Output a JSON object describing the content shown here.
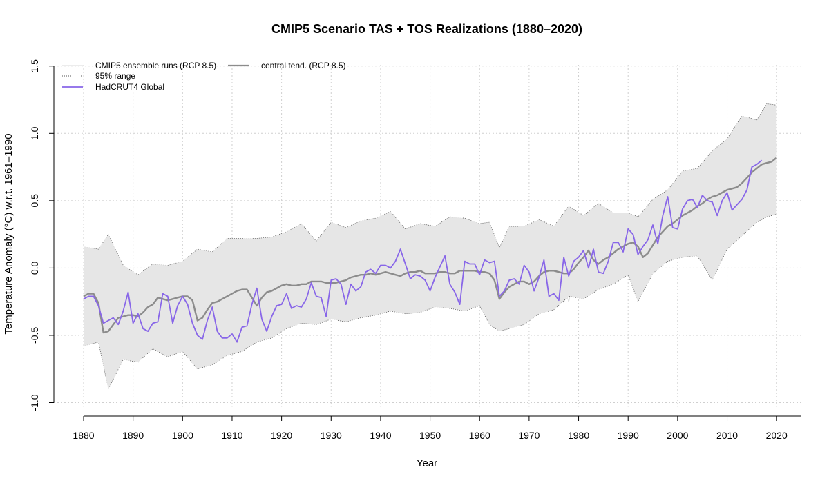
{
  "chart_data": {
    "type": "line",
    "title": "CMIP5 Scenario TAS + TOS Realizations (1880–2020)",
    "xlabel": "Year",
    "ylabel": "Temperature Anomaly (°C) w.r.t. 1961–1990",
    "xlim": [
      1874,
      2025
    ],
    "ylim": [
      -1.1,
      1.55
    ],
    "x_ticks": [
      1880,
      1890,
      1900,
      1910,
      1920,
      1930,
      1940,
      1950,
      1960,
      1970,
      1980,
      1990,
      2000,
      2010,
      2020
    ],
    "y_ticks": [
      -1.0,
      -0.5,
      0.0,
      0.5,
      1.0,
      1.5
    ],
    "y_tick_labels": [
      "-1.0",
      "-0.5",
      "0.0",
      "0.5",
      "1.0",
      "1.5"
    ],
    "grid": true,
    "legend_position": "top-left",
    "legend": [
      {
        "label": "CMIP5 ensemble runs (RCP 8.5)",
        "style": "band"
      },
      {
        "label": "95% range",
        "style": "dotted"
      },
      {
        "label": "HadCRUT4 Global",
        "style": "line"
      },
      {
        "label": "central tend. (RCP 8.5)",
        "style": "line"
      }
    ],
    "colors": {
      "ensemble": "#d9d9d9",
      "band_fill": "#e6e6e6",
      "central": "#8c8c8c",
      "hadcrut": "#8866e8",
      "range": "#555555",
      "grid": "#cfcfcf"
    },
    "series": [
      {
        "name": "central tend. (RCP 8.5)",
        "x": [
          1880,
          1881,
          1882,
          1883,
          1884,
          1885,
          1886,
          1887,
          1888,
          1889,
          1890,
          1891,
          1892,
          1893,
          1894,
          1895,
          1896,
          1897,
          1898,
          1899,
          1900,
          1901,
          1902,
          1903,
          1904,
          1905,
          1906,
          1907,
          1908,
          1909,
          1910,
          1911,
          1912,
          1913,
          1914,
          1915,
          1916,
          1917,
          1918,
          1919,
          1920,
          1921,
          1922,
          1923,
          1924,
          1925,
          1926,
          1927,
          1928,
          1929,
          1930,
          1931,
          1932,
          1933,
          1934,
          1935,
          1936,
          1937,
          1938,
          1939,
          1940,
          1941,
          1942,
          1943,
          1944,
          1945,
          1946,
          1947,
          1948,
          1949,
          1950,
          1951,
          1952,
          1953,
          1954,
          1955,
          1956,
          1957,
          1958,
          1959,
          1960,
          1961,
          1962,
          1963,
          1964,
          1965,
          1966,
          1967,
          1968,
          1969,
          1970,
          1971,
          1972,
          1973,
          1974,
          1975,
          1976,
          1977,
          1978,
          1979,
          1980,
          1981,
          1982,
          1983,
          1984,
          1985,
          1986,
          1987,
          1988,
          1989,
          1990,
          1991,
          1992,
          1993,
          1994,
          1995,
          1996,
          1997,
          1998,
          1999,
          2000,
          2001,
          2002,
          2003,
          2004,
          2005,
          2006,
          2007,
          2008,
          2009,
          2010,
          2011,
          2012,
          2013,
          2014,
          2015,
          2016,
          2017,
          2018,
          2019,
          2020
        ],
        "values": [
          -0.21,
          -0.19,
          -0.19,
          -0.26,
          -0.48,
          -0.47,
          -0.42,
          -0.37,
          -0.36,
          -0.35,
          -0.35,
          -0.36,
          -0.33,
          -0.29,
          -0.27,
          -0.22,
          -0.23,
          -0.24,
          -0.23,
          -0.22,
          -0.21,
          -0.21,
          -0.24,
          -0.39,
          -0.37,
          -0.31,
          -0.26,
          -0.25,
          -0.23,
          -0.21,
          -0.19,
          -0.17,
          -0.16,
          -0.16,
          -0.22,
          -0.28,
          -0.22,
          -0.18,
          -0.17,
          -0.15,
          -0.13,
          -0.12,
          -0.13,
          -0.13,
          -0.12,
          -0.12,
          -0.1,
          -0.1,
          -0.1,
          -0.11,
          -0.11,
          -0.11,
          -0.1,
          -0.09,
          -0.07,
          -0.06,
          -0.05,
          -0.05,
          -0.04,
          -0.05,
          -0.04,
          -0.03,
          -0.04,
          -0.05,
          -0.06,
          -0.04,
          -0.03,
          -0.03,
          -0.02,
          -0.04,
          -0.04,
          -0.04,
          -0.03,
          -0.03,
          -0.04,
          -0.04,
          -0.02,
          -0.02,
          -0.02,
          -0.02,
          -0.03,
          -0.03,
          -0.04,
          -0.09,
          -0.23,
          -0.18,
          -0.14,
          -0.12,
          -0.1,
          -0.1,
          -0.12,
          -0.1,
          -0.06,
          -0.03,
          -0.02,
          -0.02,
          -0.03,
          -0.04,
          -0.04,
          -0.01,
          0.04,
          0.08,
          0.13,
          0.06,
          0.03,
          0.06,
          0.08,
          0.11,
          0.14,
          0.16,
          0.18,
          0.19,
          0.16,
          0.08,
          0.11,
          0.17,
          0.23,
          0.27,
          0.31,
          0.33,
          0.36,
          0.39,
          0.41,
          0.43,
          0.46,
          0.48,
          0.51,
          0.53,
          0.54,
          0.56,
          0.58,
          0.59,
          0.6,
          0.63,
          0.67,
          0.71,
          0.74,
          0.77,
          0.78,
          0.79,
          0.82
        ]
      },
      {
        "name": "HadCRUT4 Global",
        "x": [
          1880,
          1881,
          1882,
          1883,
          1884,
          1885,
          1886,
          1887,
          1888,
          1889,
          1890,
          1891,
          1892,
          1893,
          1894,
          1895,
          1896,
          1897,
          1898,
          1899,
          1900,
          1901,
          1902,
          1903,
          1904,
          1905,
          1906,
          1907,
          1908,
          1909,
          1910,
          1911,
          1912,
          1913,
          1914,
          1915,
          1916,
          1917,
          1918,
          1919,
          1920,
          1921,
          1922,
          1923,
          1924,
          1925,
          1926,
          1927,
          1928,
          1929,
          1930,
          1931,
          1932,
          1933,
          1934,
          1935,
          1936,
          1937,
          1938,
          1939,
          1940,
          1941,
          1942,
          1943,
          1944,
          1945,
          1946,
          1947,
          1948,
          1949,
          1950,
          1951,
          1952,
          1953,
          1954,
          1955,
          1956,
          1957,
          1958,
          1959,
          1960,
          1961,
          1962,
          1963,
          1964,
          1965,
          1966,
          1967,
          1968,
          1969,
          1970,
          1971,
          1972,
          1973,
          1974,
          1975,
          1976,
          1977,
          1978,
          1979,
          1980,
          1981,
          1982,
          1983,
          1984,
          1985,
          1986,
          1987,
          1988,
          1989,
          1990,
          1991,
          1992,
          1993,
          1994,
          1995,
          1996,
          1997,
          1998,
          1999,
          2000,
          2001,
          2002,
          2003,
          2004,
          2005,
          2006,
          2007,
          2008,
          2009,
          2010,
          2011,
          2012,
          2013,
          2014,
          2015,
          2016,
          2017
        ],
        "values": [
          -0.23,
          -0.21,
          -0.21,
          -0.28,
          -0.41,
          -0.39,
          -0.37,
          -0.42,
          -0.32,
          -0.18,
          -0.41,
          -0.34,
          -0.45,
          -0.47,
          -0.41,
          -0.4,
          -0.19,
          -0.21,
          -0.41,
          -0.28,
          -0.21,
          -0.27,
          -0.41,
          -0.5,
          -0.53,
          -0.39,
          -0.29,
          -0.47,
          -0.52,
          -0.52,
          -0.49,
          -0.55,
          -0.44,
          -0.43,
          -0.27,
          -0.15,
          -0.38,
          -0.47,
          -0.36,
          -0.28,
          -0.27,
          -0.19,
          -0.3,
          -0.28,
          -0.29,
          -0.23,
          -0.11,
          -0.21,
          -0.22,
          -0.36,
          -0.09,
          -0.08,
          -0.12,
          -0.27,
          -0.12,
          -0.17,
          -0.14,
          -0.03,
          -0.01,
          -0.04,
          0.02,
          0.02,
          0.0,
          0.05,
          0.14,
          0.03,
          -0.08,
          -0.05,
          -0.06,
          -0.09,
          -0.17,
          -0.07,
          0.01,
          0.09,
          -0.12,
          -0.18,
          -0.27,
          0.05,
          0.03,
          0.03,
          -0.05,
          0.06,
          0.04,
          0.05,
          -0.21,
          -0.17,
          -0.09,
          -0.08,
          -0.12,
          0.02,
          -0.03,
          -0.17,
          -0.07,
          0.06,
          -0.21,
          -0.19,
          -0.24,
          0.08,
          -0.06,
          0.05,
          0.08,
          0.13,
          0.0,
          0.14,
          -0.03,
          -0.04,
          0.05,
          0.19,
          0.19,
          0.12,
          0.29,
          0.25,
          0.1,
          0.16,
          0.21,
          0.32,
          0.18,
          0.39,
          0.53,
          0.3,
          0.29,
          0.44,
          0.5,
          0.51,
          0.45,
          0.54,
          0.5,
          0.49,
          0.39,
          0.5,
          0.56,
          0.43,
          0.47,
          0.51,
          0.58,
          0.75,
          0.77,
          0.8
        ]
      }
    ],
    "band_95": {
      "x": [
        1880,
        1883,
        1885,
        1888,
        1891,
        1894,
        1897,
        1900,
        1903,
        1906,
        1909,
        1912,
        1915,
        1918,
        1921,
        1924,
        1927,
        1930,
        1933,
        1936,
        1939,
        1942,
        1945,
        1948,
        1951,
        1954,
        1957,
        1960,
        1962,
        1964,
        1966,
        1969,
        1972,
        1975,
        1978,
        1981,
        1984,
        1987,
        1990,
        1992,
        1995,
        1998,
        2001,
        2004,
        2007,
        2010,
        2013,
        2016,
        2018,
        2020
      ],
      "upper": [
        0.16,
        0.14,
        0.25,
        0.02,
        -0.05,
        0.03,
        0.02,
        0.05,
        0.14,
        0.12,
        0.22,
        0.22,
        0.22,
        0.23,
        0.27,
        0.33,
        0.2,
        0.34,
        0.3,
        0.35,
        0.37,
        0.42,
        0.29,
        0.33,
        0.31,
        0.38,
        0.37,
        0.33,
        0.34,
        0.15,
        0.31,
        0.31,
        0.36,
        0.31,
        0.46,
        0.39,
        0.48,
        0.41,
        0.41,
        0.38,
        0.51,
        0.58,
        0.72,
        0.74,
        0.87,
        0.96,
        1.13,
        1.1,
        1.22,
        1.21
      ],
      "lower": [
        -0.58,
        -0.55,
        -0.9,
        -0.68,
        -0.7,
        -0.6,
        -0.66,
        -0.62,
        -0.75,
        -0.72,
        -0.65,
        -0.62,
        -0.55,
        -0.52,
        -0.45,
        -0.41,
        -0.42,
        -0.38,
        -0.4,
        -0.37,
        -0.35,
        -0.32,
        -0.34,
        -0.33,
        -0.29,
        -0.3,
        -0.32,
        -0.28,
        -0.42,
        -0.47,
        -0.45,
        -0.42,
        -0.34,
        -0.31,
        -0.21,
        -0.23,
        -0.16,
        -0.12,
        -0.05,
        -0.25,
        -0.04,
        0.05,
        0.08,
        0.09,
        -0.09,
        0.14,
        0.24,
        0.34,
        0.38,
        0.4
      ]
    }
  }
}
